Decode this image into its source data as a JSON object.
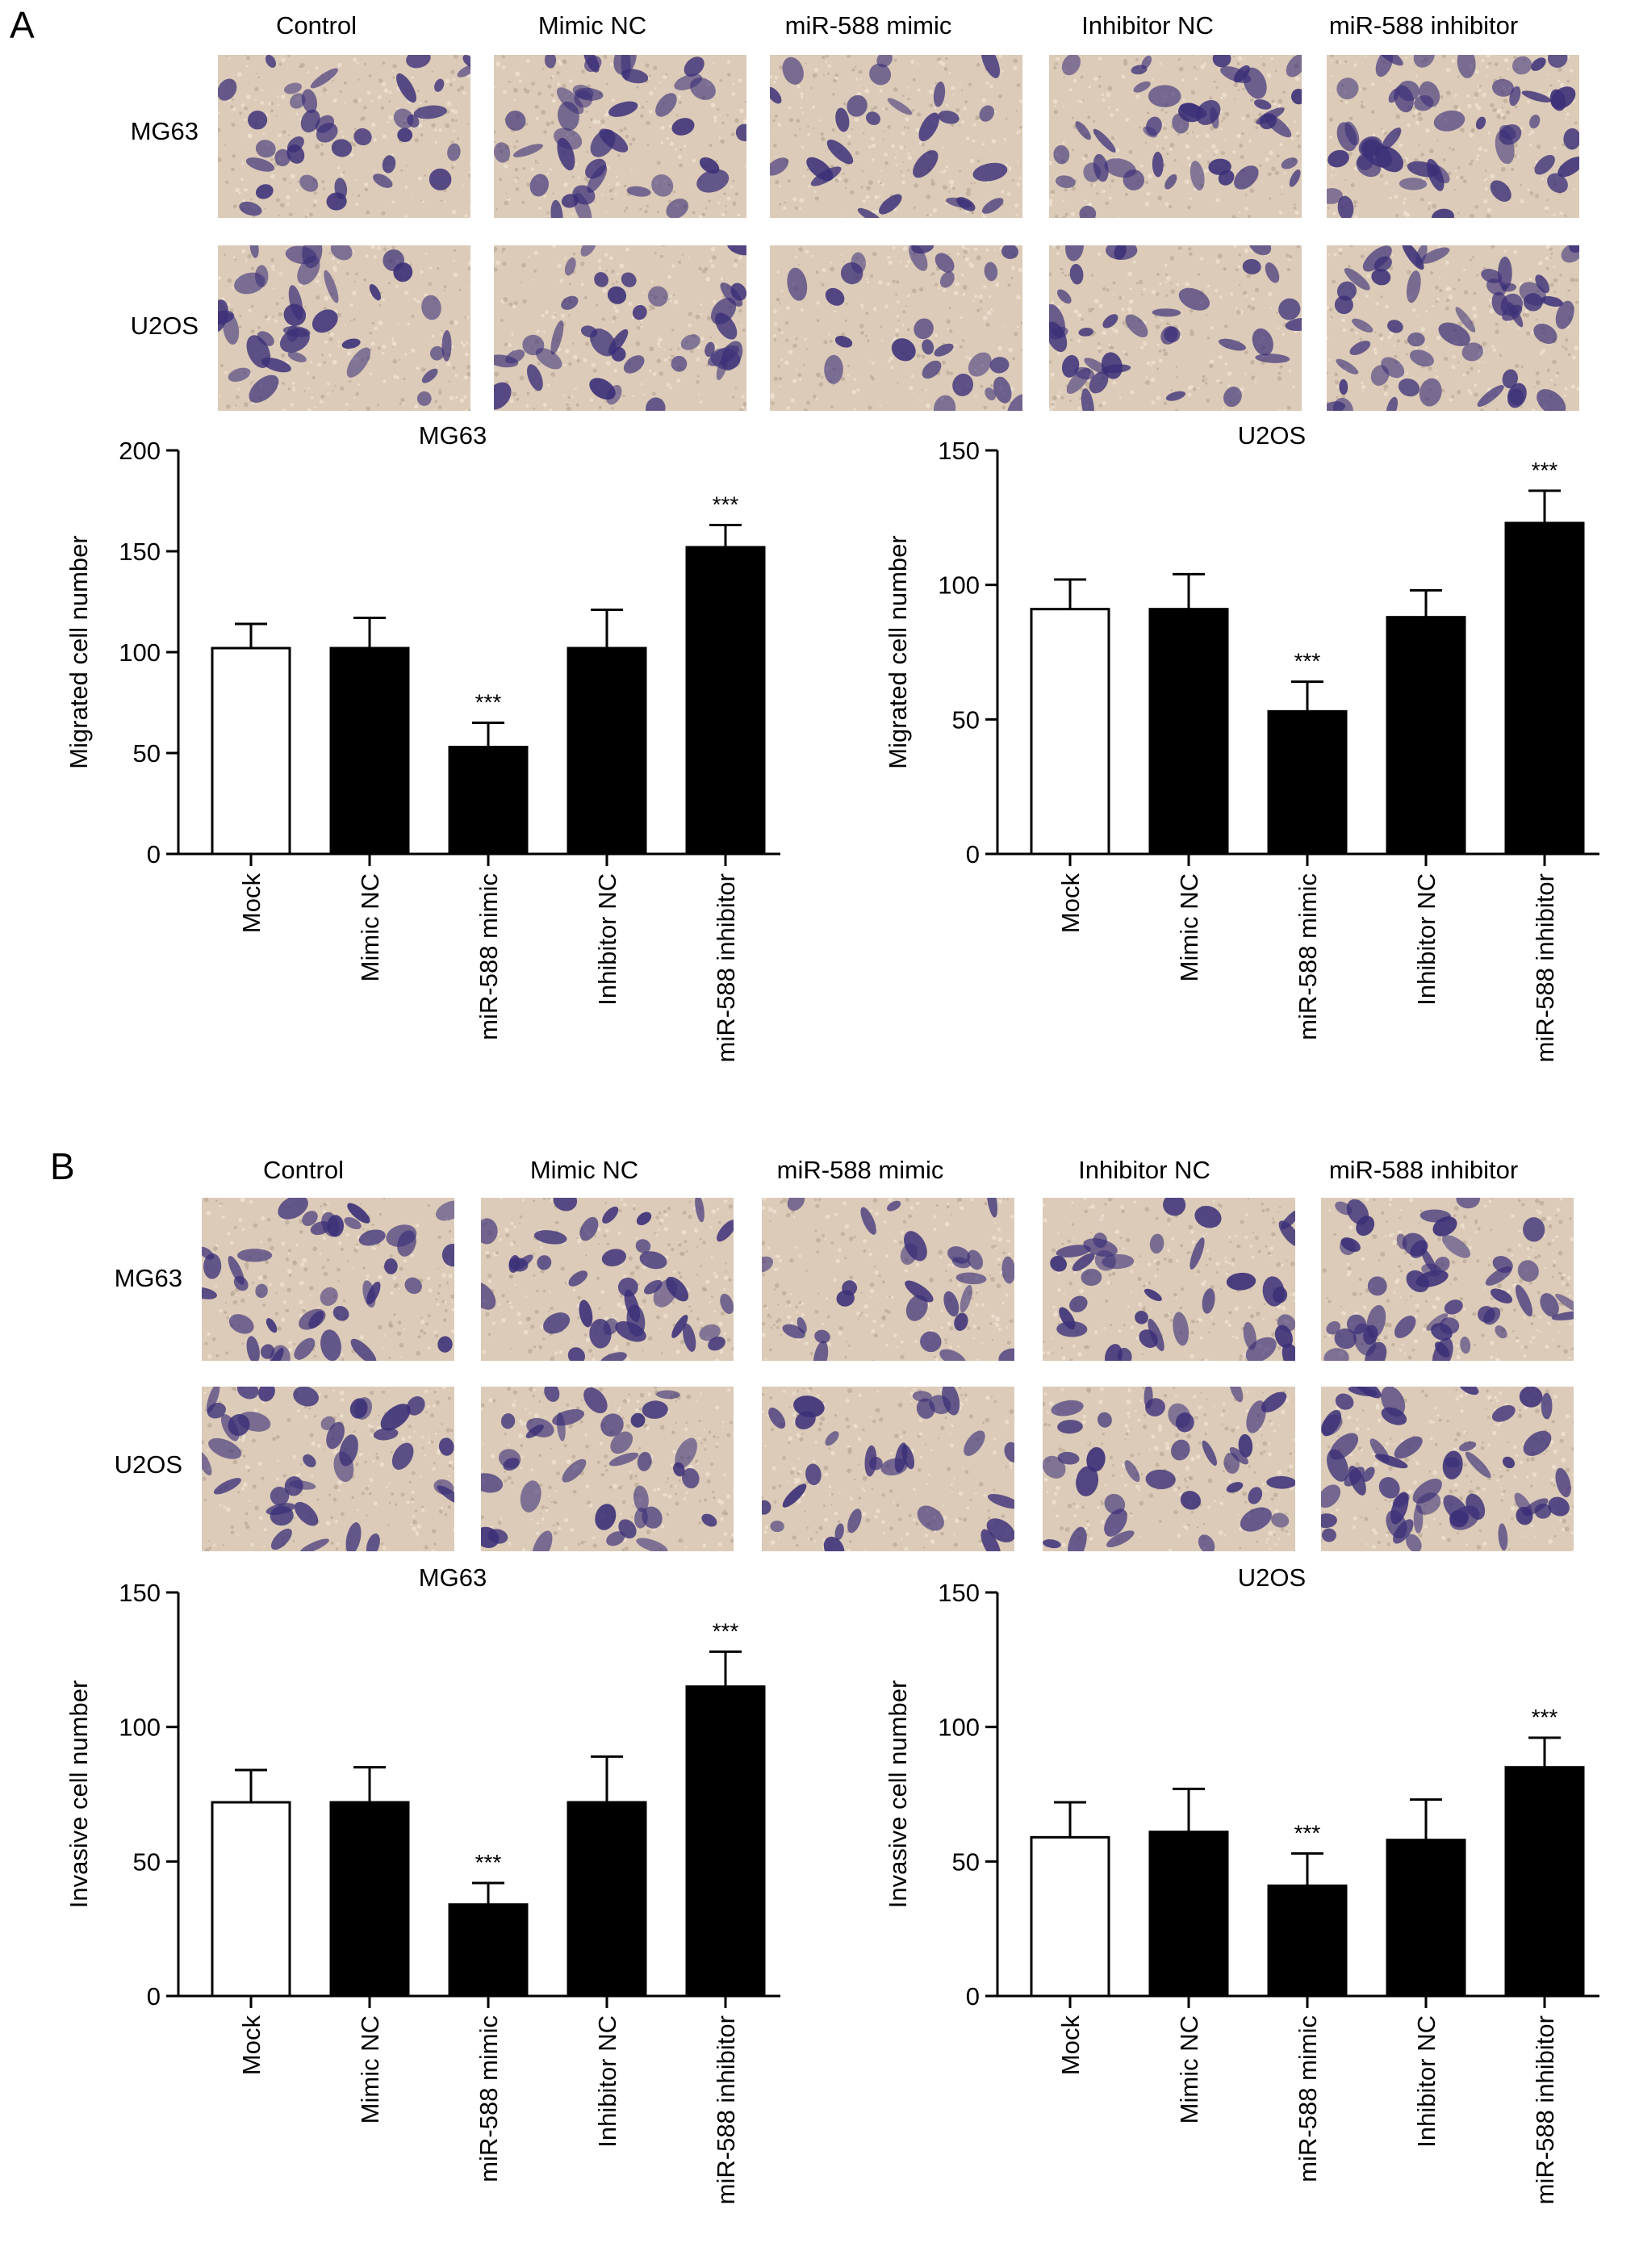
{
  "panels": [
    {
      "letter": "A",
      "columns": [
        "Control",
        "Mimic NC",
        "miR-588 mimic",
        "Inhibitor NC",
        "miR-588 inhibitor"
      ],
      "rows": [
        "MG63",
        "U2OS"
      ],
      "density": [
        [
          0.55,
          0.6,
          0.3,
          0.65,
          0.8
        ],
        [
          0.5,
          0.55,
          0.3,
          0.5,
          0.85
        ]
      ]
    },
    {
      "letter": "B",
      "columns": [
        "Control",
        "Mimic NC",
        "miR-588 mimic",
        "Inhibitor NC",
        "miR-588 inhibitor"
      ],
      "rows": [
        "MG63",
        "U2OS"
      ],
      "density": [
        [
          0.6,
          0.55,
          0.35,
          0.5,
          0.8
        ],
        [
          0.55,
          0.5,
          0.35,
          0.5,
          0.85
        ]
      ]
    }
  ],
  "colors": {
    "bar_fill": "#000000",
    "mock_fill": "#ffffff",
    "stain": "#3b2f78",
    "background": "#dccbb8"
  },
  "chart_data": [
    {
      "type": "bar",
      "title": "MG63",
      "ylabel": "Migrated cell number",
      "ylim": [
        0,
        200
      ],
      "yticks": [
        0,
        50,
        100,
        150,
        200
      ],
      "categories": [
        "Mock",
        "Mimic NC",
        "miR-588 mimic",
        "Inhibitor NC",
        "miR-588 inhibitor"
      ],
      "values": [
        102,
        102,
        53,
        102,
        152
      ],
      "errors": [
        12,
        15,
        12,
        19,
        11
      ],
      "annotations": [
        "",
        "",
        "***",
        "",
        "***"
      ]
    },
    {
      "type": "bar",
      "title": "U2OS",
      "ylabel": "Migrated cell number",
      "ylim": [
        0,
        150
      ],
      "yticks": [
        0,
        50,
        100,
        150
      ],
      "categories": [
        "Mock",
        "Mimic NC",
        "miR-588 mimic",
        "Inhibitor NC",
        "miR-588 inhibitor"
      ],
      "values": [
        91,
        91,
        53,
        88,
        123
      ],
      "errors": [
        11,
        13,
        11,
        10,
        12
      ],
      "annotations": [
        "",
        "",
        "***",
        "",
        "***"
      ]
    },
    {
      "type": "bar",
      "title": "MG63",
      "ylabel": "Invasive cell number",
      "ylim": [
        0,
        150
      ],
      "yticks": [
        0,
        50,
        100,
        150
      ],
      "categories": [
        "Mock",
        "Mimic NC",
        "miR-588 mimic",
        "Inhibitor NC",
        "miR-588 inhibitor"
      ],
      "values": [
        72,
        72,
        34,
        72,
        115
      ],
      "errors": [
        12,
        13,
        8,
        17,
        13
      ],
      "annotations": [
        "",
        "",
        "***",
        "",
        "***"
      ]
    },
    {
      "type": "bar",
      "title": "U2OS",
      "ylabel": "Invasive cell number",
      "ylim": [
        0,
        150
      ],
      "yticks": [
        0,
        50,
        100,
        150
      ],
      "categories": [
        "Mock",
        "Mimic NC",
        "miR-588 mimic",
        "Inhibitor NC",
        "miR-588 inhibitor"
      ],
      "values": [
        59,
        61,
        41,
        58,
        85
      ],
      "errors": [
        13,
        16,
        12,
        15,
        11
      ],
      "annotations": [
        "",
        "",
        "***",
        "",
        "***"
      ]
    }
  ]
}
